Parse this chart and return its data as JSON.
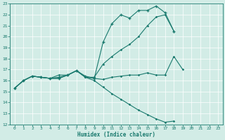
{
  "xlabel": "Humidex (Indice chaleur)",
  "bg_color": "#d2ece6",
  "line_color": "#1a7a6e",
  "xlim": [
    -0.5,
    23.5
  ],
  "ylim": [
    12,
    23
  ],
  "yticks": [
    12,
    13,
    14,
    15,
    16,
    17,
    18,
    19,
    20,
    21,
    22,
    23
  ],
  "xticks": [
    0,
    1,
    2,
    3,
    4,
    5,
    6,
    7,
    8,
    9,
    10,
    11,
    12,
    13,
    14,
    15,
    16,
    17,
    18,
    19,
    20,
    21,
    22,
    23
  ],
  "s1_x": [
    0,
    1,
    2,
    3,
    4,
    5,
    6,
    7,
    8,
    9,
    10,
    11,
    12,
    13,
    14,
    15,
    16,
    17,
    18,
    19,
    20,
    21,
    22
  ],
  "s1_y": [
    15.3,
    16.0,
    16.4,
    16.3,
    16.2,
    16.3,
    16.5,
    16.9,
    16.3,
    16.2,
    16.1,
    16.3,
    16.4,
    16.5,
    16.5,
    16.7,
    16.5,
    16.5,
    18.2,
    17.0,
    null,
    null,
    null
  ],
  "s2_x": [
    0,
    1,
    2,
    3,
    4,
    5,
    6,
    7,
    8,
    9,
    10,
    11,
    12,
    13,
    14,
    15,
    16,
    17,
    18
  ],
  "s2_y": [
    15.3,
    16.0,
    16.4,
    16.3,
    16.2,
    16.2,
    16.5,
    16.9,
    16.4,
    16.2,
    19.5,
    21.2,
    22.0,
    21.7,
    22.4,
    22.4,
    22.8,
    22.2,
    20.5
  ],
  "s3_x": [
    0,
    1,
    2,
    3,
    4,
    5,
    6,
    7,
    8,
    9,
    10,
    11,
    12,
    13,
    14,
    15,
    16,
    17,
    18
  ],
  "s3_y": [
    15.3,
    16.0,
    16.4,
    16.3,
    16.2,
    16.5,
    16.5,
    16.9,
    16.3,
    16.3,
    17.5,
    18.2,
    18.8,
    19.3,
    20.0,
    21.0,
    21.8,
    22.0,
    20.5
  ],
  "s4_x": [
    0,
    1,
    2,
    3,
    4,
    5,
    6,
    7,
    8,
    9,
    10,
    11,
    12,
    13,
    14,
    15,
    16,
    17,
    18,
    19,
    20,
    21,
    22
  ],
  "s4_y": [
    15.3,
    16.0,
    16.4,
    16.3,
    16.2,
    16.2,
    16.5,
    16.9,
    16.3,
    16.0,
    15.4,
    14.8,
    14.3,
    13.8,
    13.3,
    12.9,
    12.5,
    12.2,
    12.3,
    null,
    null,
    null,
    null
  ]
}
